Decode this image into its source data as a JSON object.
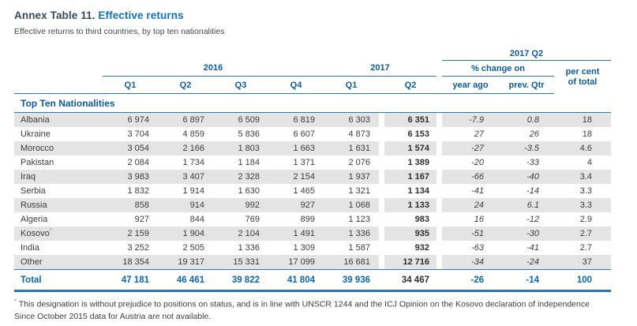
{
  "title": {
    "prefix": "Annex Table 11.",
    "highlight": "Effective returns"
  },
  "subtitle": "Effective returns to third countries, by top ten nationalities",
  "colors": {
    "accent_line_blue": "#2e75b6",
    "header_text_blue": "#0d5ba5",
    "title_blue": "#1173bd",
    "title_dark": "#3a4a57",
    "body_text": "#3c3c3c",
    "row_shade": "#e4e4e4",
    "total_blue": "#0c64b2"
  },
  "table": {
    "groups": {
      "y2016": "2016",
      "y2017": "2017",
      "q2_2017": "2017 Q2",
      "pct_change": "% change on",
      "per_cent_line1": "per cent",
      "per_cent_line2": "of total"
    },
    "quarter_headers": [
      "Q1",
      "Q2",
      "Q3",
      "Q4",
      "Q1",
      "Q2"
    ],
    "change_headers": [
      "year ago",
      "prev. Qtr"
    ],
    "section_label": "Top Ten Nationalities",
    "rows": [
      {
        "name": "Albania",
        "values": [
          "6 974",
          "6 897",
          "6 509",
          "6 819",
          "6 303",
          "6 351",
          "-7.9",
          "0.8",
          "18"
        ]
      },
      {
        "name": "Ukraine",
        "values": [
          "3 704",
          "4 859",
          "5 836",
          "6 607",
          "4 873",
          "6 153",
          "27",
          "26",
          "18"
        ]
      },
      {
        "name": "Morocco",
        "values": [
          "3 054",
          "2 166",
          "1 803",
          "1 663",
          "1 631",
          "1 574",
          "-27",
          "-3.5",
          "4.6"
        ]
      },
      {
        "name": "Pakistan",
        "values": [
          "2 084",
          "1 734",
          "1 184",
          "1 371",
          "2 076",
          "1 389",
          "-20",
          "-33",
          "4"
        ]
      },
      {
        "name": "Iraq",
        "values": [
          "3 983",
          "3 407",
          "2 328",
          "2 154",
          "1 937",
          "1 167",
          "-66",
          "-40",
          "3.4"
        ]
      },
      {
        "name": "Serbia",
        "values": [
          "1 832",
          "1 914",
          "1 630",
          "1 465",
          "1 321",
          "1 134",
          "-41",
          "-14",
          "3.3"
        ]
      },
      {
        "name": "Russia",
        "values": [
          "858",
          "914",
          "992",
          "927",
          "1 068",
          "1 133",
          "24",
          "6.1",
          "3.3"
        ]
      },
      {
        "name": "Algeria",
        "values": [
          "927",
          "844",
          "769",
          "899",
          "1 123",
          "983",
          "16",
          "-12",
          "2.9"
        ]
      },
      {
        "name": "Kosovo",
        "marker": "°",
        "values": [
          "2 159",
          "1 904",
          "2 104",
          "1 491",
          "1 336",
          "935",
          "-51",
          "-30",
          "2.7"
        ]
      },
      {
        "name": "India",
        "values": [
          "3 252",
          "2 505",
          "1 336",
          "1 309",
          "1 587",
          "932",
          "-63",
          "-41",
          "2.7"
        ]
      },
      {
        "name": "Other",
        "values": [
          "18 354",
          "19 317",
          "15 331",
          "17 099",
          "16 681",
          "12 716",
          "-34",
          "-24",
          "37"
        ]
      }
    ],
    "total": {
      "name": "Total",
      "values": [
        "47 181",
        "46 461",
        "39 822",
        "41 804",
        "39 936",
        "34 467",
        "-26",
        "-14",
        "100"
      ]
    }
  },
  "footnote": {
    "marker": "°",
    "line1": "This designation is without prejudice to positions on status, and is in line with UNSCR 1244 and the ICJ Opinion on the Kosovo declaration of independence",
    "line2": "Since October 2015 data for Austria are not available."
  }
}
